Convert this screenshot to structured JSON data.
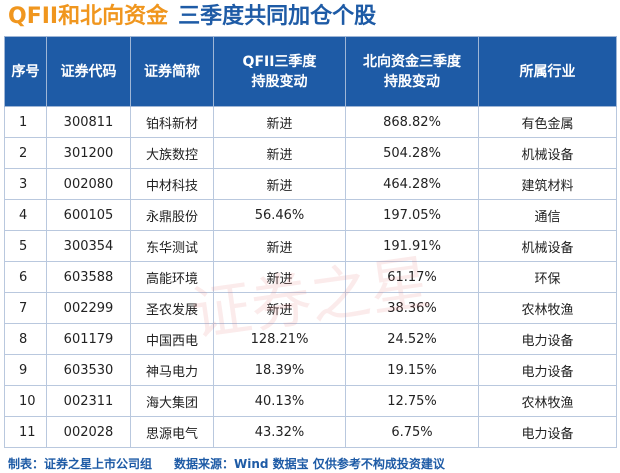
{
  "header": {
    "title_part1": "QFII和北向资金",
    "title_part2": "三季度共同加仓个股"
  },
  "table": {
    "columns": [
      "序号",
      "证券代码",
      "证券简称",
      "QFII三季度\n持股变动",
      "北向资金三季度\n持股变动",
      "所属行业"
    ],
    "rows": [
      [
        "1",
        "300811",
        "铂科新材",
        "新进",
        "868.82%",
        "有色金属"
      ],
      [
        "2",
        "301200",
        "大族数控",
        "新进",
        "504.28%",
        "机械设备"
      ],
      [
        "3",
        "002080",
        "中材科技",
        "新进",
        "464.28%",
        "建筑材料"
      ],
      [
        "4",
        "600105",
        "永鼎股份",
        "56.46%",
        "197.05%",
        "通信"
      ],
      [
        "5",
        "300354",
        "东华测试",
        "新进",
        "191.91%",
        "机械设备"
      ],
      [
        "6",
        "603588",
        "高能环境",
        "新进",
        "61.17%",
        "环保"
      ],
      [
        "7",
        "002299",
        "圣农发展",
        "新进",
        "38.36%",
        "农林牧渔"
      ],
      [
        "8",
        "601179",
        "中国西电",
        "128.21%",
        "24.52%",
        "电力设备"
      ],
      [
        "9",
        "603530",
        "神马电力",
        "18.39%",
        "19.15%",
        "电力设备"
      ],
      [
        "10",
        "002311",
        "海大集团",
        "40.13%",
        "12.75%",
        "农林牧渔"
      ],
      [
        "11",
        "002028",
        "思源电气",
        "43.32%",
        "6.75%",
        "电力设备"
      ]
    ]
  },
  "watermark": "证券之星",
  "footer": {
    "maker": "制表：证券之星上市公司组",
    "source": "数据来源：Wind 数据宝 仅供参考不构成投资建议"
  }
}
